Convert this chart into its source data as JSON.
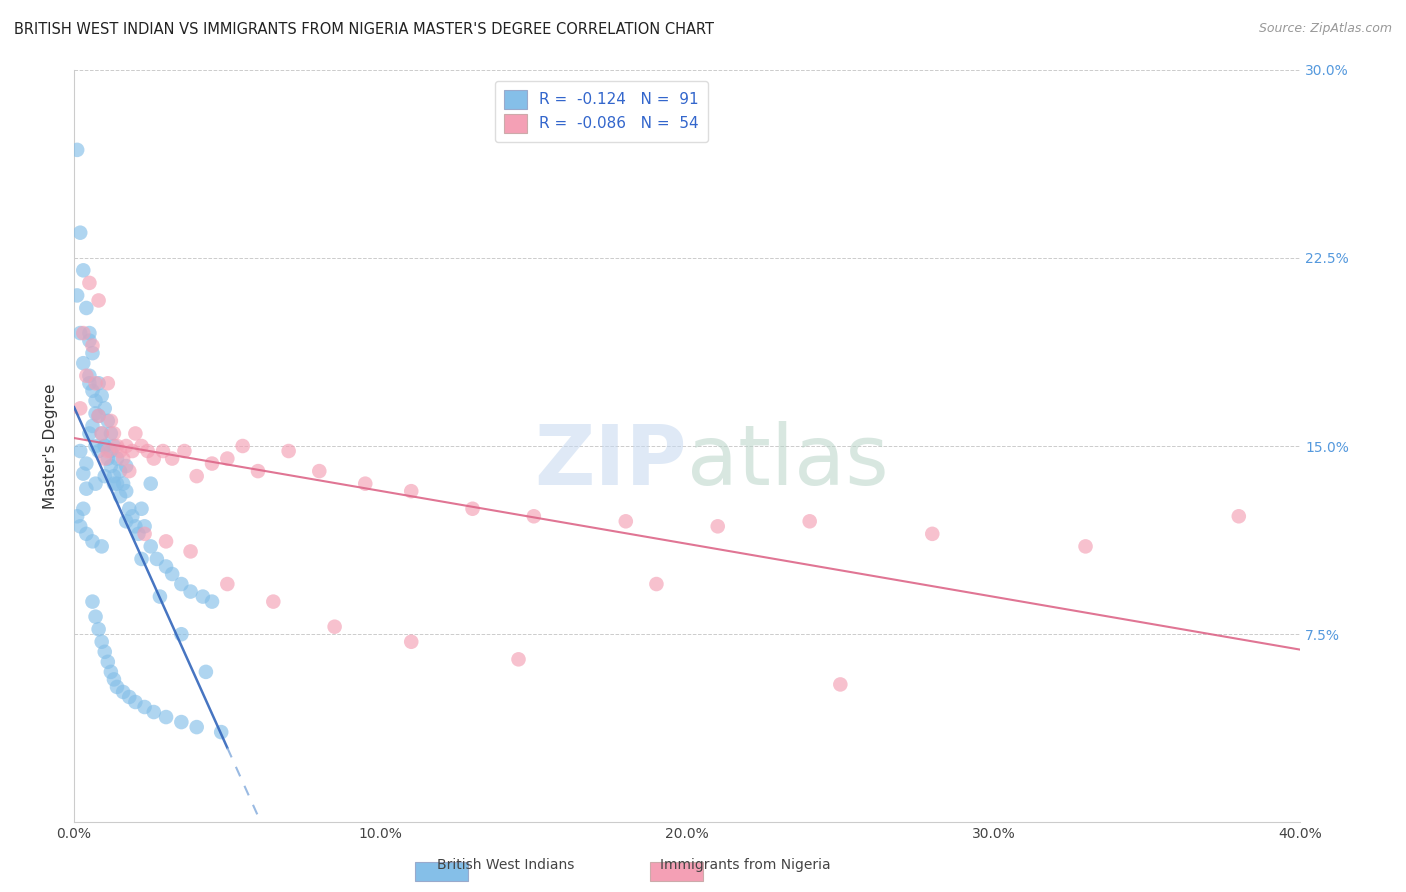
{
  "title": "BRITISH WEST INDIAN VS IMMIGRANTS FROM NIGERIA MASTER'S DEGREE CORRELATION CHART",
  "source": "Source: ZipAtlas.com",
  "ylabel": "Master's Degree",
  "xlim": [
    0.0,
    40.0
  ],
  "ylim": [
    0.0,
    30.0
  ],
  "xticks": [
    0.0,
    5.0,
    10.0,
    15.0,
    20.0,
    25.0,
    30.0,
    35.0,
    40.0
  ],
  "xtick_labels": [
    "0.0%",
    "",
    "10.0%",
    "",
    "20.0%",
    "",
    "30.0%",
    "",
    "40.0%"
  ],
  "yticks_right": [
    7.5,
    15.0,
    22.5,
    30.0
  ],
  "ytick_labels_right": [
    "7.5%",
    "15.0%",
    "22.5%",
    "30.0%"
  ],
  "blue_color": "#85bfe8",
  "pink_color": "#f4a0b5",
  "blue_R": -0.124,
  "blue_N": 91,
  "pink_R": -0.086,
  "pink_N": 54,
  "blue_label": "British West Indians",
  "pink_label": "Immigrants from Nigeria",
  "blue_trend_color": "#3366bb",
  "blue_dash_color": "#88aedd",
  "pink_trend_color": "#dd6688",
  "blue_solid_end": 5.0,
  "blue_x": [
    0.2,
    0.3,
    0.3,
    0.4,
    0.4,
    0.5,
    0.5,
    0.5,
    0.6,
    0.6,
    0.6,
    0.7,
    0.7,
    0.7,
    0.8,
    0.8,
    0.8,
    0.9,
    0.9,
    1.0,
    1.0,
    1.0,
    1.1,
    1.1,
    1.2,
    1.2,
    1.3,
    1.3,
    1.4,
    1.4,
    1.5,
    1.5,
    1.6,
    1.7,
    1.8,
    1.9,
    2.0,
    2.1,
    2.2,
    2.3,
    2.5,
    2.7,
    3.0,
    3.2,
    3.5,
    3.8,
    4.2,
    4.5,
    0.1,
    0.2,
    0.3,
    0.4,
    0.5,
    0.6,
    0.7,
    0.8,
    0.9,
    1.0,
    1.1,
    1.2,
    1.3,
    1.4,
    1.6,
    1.8,
    2.0,
    2.3,
    2.6,
    3.0,
    3.5,
    4.0,
    4.8,
    0.1,
    0.2,
    0.3,
    0.5,
    0.7,
    1.0,
    1.3,
    1.7,
    2.2,
    2.8,
    3.5,
    4.3,
    0.1,
    0.2,
    0.4,
    0.6,
    0.9,
    1.2,
    1.7,
    2.5
  ],
  "blue_y": [
    14.8,
    13.9,
    12.5,
    14.3,
    13.3,
    19.2,
    17.8,
    15.5,
    18.7,
    17.2,
    15.8,
    16.8,
    15.0,
    13.5,
    17.5,
    16.2,
    14.8,
    17.0,
    15.5,
    16.5,
    15.0,
    13.8,
    16.0,
    14.5,
    15.5,
    14.2,
    15.0,
    13.8,
    14.5,
    13.5,
    14.0,
    13.0,
    13.5,
    13.2,
    12.5,
    12.2,
    11.8,
    11.5,
    12.5,
    11.8,
    11.0,
    10.5,
    10.2,
    9.9,
    9.5,
    9.2,
    9.0,
    8.8,
    26.8,
    23.5,
    22.0,
    20.5,
    19.5,
    8.8,
    8.2,
    7.7,
    7.2,
    6.8,
    6.4,
    6.0,
    5.7,
    5.4,
    5.2,
    5.0,
    4.8,
    4.6,
    4.4,
    4.2,
    4.0,
    3.8,
    3.6,
    21.0,
    19.5,
    18.3,
    17.5,
    16.3,
    15.0,
    13.5,
    12.0,
    10.5,
    9.0,
    7.5,
    6.0,
    12.2,
    11.8,
    11.5,
    11.2,
    11.0,
    14.8,
    14.2,
    13.5
  ],
  "pink_x": [
    0.2,
    0.4,
    0.6,
    0.7,
    0.8,
    0.9,
    1.0,
    1.1,
    1.2,
    1.3,
    1.5,
    1.6,
    1.7,
    1.9,
    2.0,
    2.2,
    2.4,
    2.6,
    2.9,
    3.2,
    3.6,
    4.0,
    4.5,
    5.0,
    5.5,
    6.0,
    7.0,
    8.0,
    9.5,
    11.0,
    13.0,
    15.0,
    18.0,
    21.0,
    24.0,
    28.0,
    33.0,
    38.0,
    0.3,
    0.5,
    0.8,
    1.1,
    1.4,
    1.8,
    2.3,
    3.0,
    3.8,
    5.0,
    6.5,
    8.5,
    11.0,
    14.5,
    19.0,
    25.0
  ],
  "pink_y": [
    16.5,
    17.8,
    19.0,
    17.5,
    16.2,
    15.5,
    14.5,
    14.8,
    16.0,
    15.5,
    14.8,
    14.5,
    15.0,
    14.8,
    15.5,
    15.0,
    14.8,
    14.5,
    14.8,
    14.5,
    14.8,
    13.8,
    14.3,
    14.5,
    15.0,
    14.0,
    14.8,
    14.0,
    13.5,
    13.2,
    12.5,
    12.2,
    12.0,
    11.8,
    12.0,
    11.5,
    11.0,
    12.2,
    19.5,
    21.5,
    20.8,
    17.5,
    15.0,
    14.0,
    11.5,
    11.2,
    10.8,
    9.5,
    8.8,
    7.8,
    7.2,
    6.5,
    9.5,
    5.5
  ],
  "legend_text_blue": "R =  -0.124   N =  91",
  "legend_text_pink": "R =  -0.086   N =  54"
}
